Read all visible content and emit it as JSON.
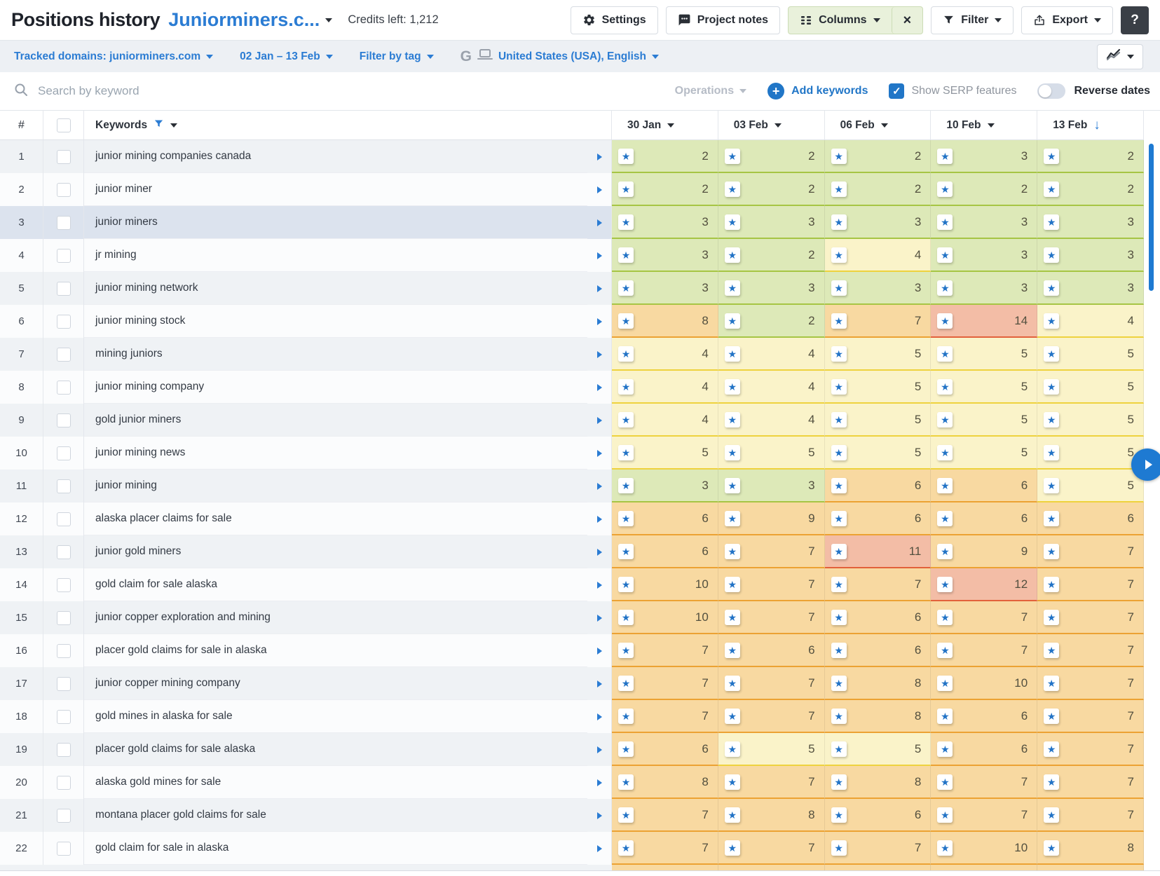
{
  "header": {
    "title": "Positions history",
    "project": "Juniorminers.c...",
    "credits": "Credits left: 1,212",
    "settings_label": "Settings",
    "project_notes_label": "Project notes",
    "columns_label": "Columns",
    "close_glyph": "×",
    "filter_label": "Filter",
    "export_label": "Export",
    "help_glyph": "?"
  },
  "filterbar": {
    "tracked_domains": "Tracked domains: juniorminers.com",
    "date_range": "02 Jan – 13 Feb",
    "filter_by_tag": "Filter by tag",
    "search_engine_glyph": "G",
    "location": "United States (USA), English"
  },
  "toolbar": {
    "search_placeholder": "Search by keyword",
    "operations_label": "Operations",
    "add_keywords_label": "Add keywords",
    "show_serp_label": "Show SERP features",
    "check_glyph": "✓",
    "reverse_dates_label": "Reverse dates"
  },
  "icons": {
    "star_glyph": "★",
    "sort_desc_glyph": "↓",
    "plus_glyph": "+"
  },
  "colors": {
    "accent_blue": "#2b7cd3",
    "star_blue": "#2273c6",
    "g": {
      "bg": "#dde9b8",
      "border": "#a6c544"
    },
    "y": {
      "bg": "#faf3c9",
      "border": "#eed23e"
    },
    "o": {
      "bg": "#f8d9a1",
      "border": "#eca233"
    },
    "r": {
      "bg": "#f3bda6",
      "border": "#e2613b"
    }
  },
  "table": {
    "num_header": "#",
    "keywords_header": "Keywords",
    "date_columns": [
      {
        "label": "30 Jan",
        "sorted": false
      },
      {
        "label": "03 Feb",
        "sorted": false
      },
      {
        "label": "06 Feb",
        "sorted": false
      },
      {
        "label": "10 Feb",
        "sorted": false
      },
      {
        "label": "13 Feb",
        "sorted": true
      }
    ],
    "rows": [
      {
        "n": 1,
        "keyword": "junior mining companies canada",
        "sel": false,
        "cells": [
          [
            "2",
            "g"
          ],
          [
            "2",
            "g"
          ],
          [
            "2",
            "g"
          ],
          [
            "3",
            "g"
          ],
          [
            "2",
            "g"
          ]
        ]
      },
      {
        "n": 2,
        "keyword": "junior miner",
        "sel": false,
        "cells": [
          [
            "2",
            "g"
          ],
          [
            "2",
            "g"
          ],
          [
            "2",
            "g"
          ],
          [
            "2",
            "g"
          ],
          [
            "2",
            "g"
          ]
        ]
      },
      {
        "n": 3,
        "keyword": "junior miners",
        "sel": true,
        "cells": [
          [
            "3",
            "g"
          ],
          [
            "3",
            "g"
          ],
          [
            "3",
            "g"
          ],
          [
            "3",
            "g"
          ],
          [
            "3",
            "g"
          ]
        ]
      },
      {
        "n": 4,
        "keyword": "jr mining",
        "sel": false,
        "cells": [
          [
            "3",
            "g"
          ],
          [
            "2",
            "g"
          ],
          [
            "4",
            "y"
          ],
          [
            "3",
            "g"
          ],
          [
            "3",
            "g"
          ]
        ]
      },
      {
        "n": 5,
        "keyword": "junior mining network",
        "sel": false,
        "cells": [
          [
            "3",
            "g"
          ],
          [
            "3",
            "g"
          ],
          [
            "3",
            "g"
          ],
          [
            "3",
            "g"
          ],
          [
            "3",
            "g"
          ]
        ]
      },
      {
        "n": 6,
        "keyword": "junior mining stock",
        "sel": false,
        "cells": [
          [
            "8",
            "o"
          ],
          [
            "2",
            "g"
          ],
          [
            "7",
            "o"
          ],
          [
            "14",
            "r"
          ],
          [
            "4",
            "y"
          ]
        ]
      },
      {
        "n": 7,
        "keyword": "mining juniors",
        "sel": false,
        "cells": [
          [
            "4",
            "y"
          ],
          [
            "4",
            "y"
          ],
          [
            "5",
            "y"
          ],
          [
            "5",
            "y"
          ],
          [
            "5",
            "y"
          ]
        ]
      },
      {
        "n": 8,
        "keyword": "junior mining company",
        "sel": false,
        "cells": [
          [
            "4",
            "y"
          ],
          [
            "4",
            "y"
          ],
          [
            "5",
            "y"
          ],
          [
            "5",
            "y"
          ],
          [
            "5",
            "y"
          ]
        ]
      },
      {
        "n": 9,
        "keyword": "gold junior miners",
        "sel": false,
        "cells": [
          [
            "4",
            "y"
          ],
          [
            "4",
            "y"
          ],
          [
            "5",
            "y"
          ],
          [
            "5",
            "y"
          ],
          [
            "5",
            "y"
          ]
        ]
      },
      {
        "n": 10,
        "keyword": "junior mining news",
        "sel": false,
        "cells": [
          [
            "5",
            "y"
          ],
          [
            "5",
            "y"
          ],
          [
            "5",
            "y"
          ],
          [
            "5",
            "y"
          ],
          [
            "5",
            "y"
          ]
        ]
      },
      {
        "n": 11,
        "keyword": "junior mining",
        "sel": false,
        "cells": [
          [
            "3",
            "g"
          ],
          [
            "3",
            "g"
          ],
          [
            "6",
            "o"
          ],
          [
            "6",
            "o"
          ],
          [
            "5",
            "y"
          ]
        ]
      },
      {
        "n": 12,
        "keyword": "alaska placer claims for sale",
        "sel": false,
        "cells": [
          [
            "6",
            "o"
          ],
          [
            "9",
            "o"
          ],
          [
            "6",
            "o"
          ],
          [
            "6",
            "o"
          ],
          [
            "6",
            "o"
          ]
        ]
      },
      {
        "n": 13,
        "keyword": "junior gold miners",
        "sel": false,
        "cells": [
          [
            "6",
            "o"
          ],
          [
            "7",
            "o"
          ],
          [
            "11",
            "r"
          ],
          [
            "9",
            "o"
          ],
          [
            "7",
            "o"
          ]
        ]
      },
      {
        "n": 14,
        "keyword": "gold claim for sale alaska",
        "sel": false,
        "cells": [
          [
            "10",
            "o"
          ],
          [
            "7",
            "o"
          ],
          [
            "7",
            "o"
          ],
          [
            "12",
            "r"
          ],
          [
            "7",
            "o"
          ]
        ]
      },
      {
        "n": 15,
        "keyword": "junior copper exploration and mining",
        "sel": false,
        "cells": [
          [
            "10",
            "o"
          ],
          [
            "7",
            "o"
          ],
          [
            "6",
            "o"
          ],
          [
            "7",
            "o"
          ],
          [
            "7",
            "o"
          ]
        ]
      },
      {
        "n": 16,
        "keyword": "placer gold claims for sale in alaska",
        "sel": false,
        "cells": [
          [
            "7",
            "o"
          ],
          [
            "6",
            "o"
          ],
          [
            "6",
            "o"
          ],
          [
            "7",
            "o"
          ],
          [
            "7",
            "o"
          ]
        ]
      },
      {
        "n": 17,
        "keyword": "junior copper mining company",
        "sel": false,
        "cells": [
          [
            "7",
            "o"
          ],
          [
            "7",
            "o"
          ],
          [
            "8",
            "o"
          ],
          [
            "10",
            "o"
          ],
          [
            "7",
            "o"
          ]
        ]
      },
      {
        "n": 18,
        "keyword": "gold mines in alaska for sale",
        "sel": false,
        "cells": [
          [
            "7",
            "o"
          ],
          [
            "7",
            "o"
          ],
          [
            "8",
            "o"
          ],
          [
            "6",
            "o"
          ],
          [
            "7",
            "o"
          ]
        ]
      },
      {
        "n": 19,
        "keyword": "placer gold claims for sale alaska",
        "sel": false,
        "cells": [
          [
            "6",
            "o"
          ],
          [
            "5",
            "y"
          ],
          [
            "5",
            "y"
          ],
          [
            "6",
            "o"
          ],
          [
            "7",
            "o"
          ]
        ]
      },
      {
        "n": 20,
        "keyword": "alaska gold mines for sale",
        "sel": false,
        "cells": [
          [
            "8",
            "o"
          ],
          [
            "7",
            "o"
          ],
          [
            "8",
            "o"
          ],
          [
            "7",
            "o"
          ],
          [
            "7",
            "o"
          ]
        ]
      },
      {
        "n": 21,
        "keyword": "montana placer gold claims for sale",
        "sel": false,
        "cells": [
          [
            "7",
            "o"
          ],
          [
            "8",
            "o"
          ],
          [
            "6",
            "o"
          ],
          [
            "7",
            "o"
          ],
          [
            "7",
            "o"
          ]
        ]
      },
      {
        "n": 22,
        "keyword": "gold claim for sale in alaska",
        "sel": false,
        "cells": [
          [
            "7",
            "o"
          ],
          [
            "7",
            "o"
          ],
          [
            "7",
            "o"
          ],
          [
            "10",
            "o"
          ],
          [
            "8",
            "o"
          ]
        ]
      }
    ]
  }
}
